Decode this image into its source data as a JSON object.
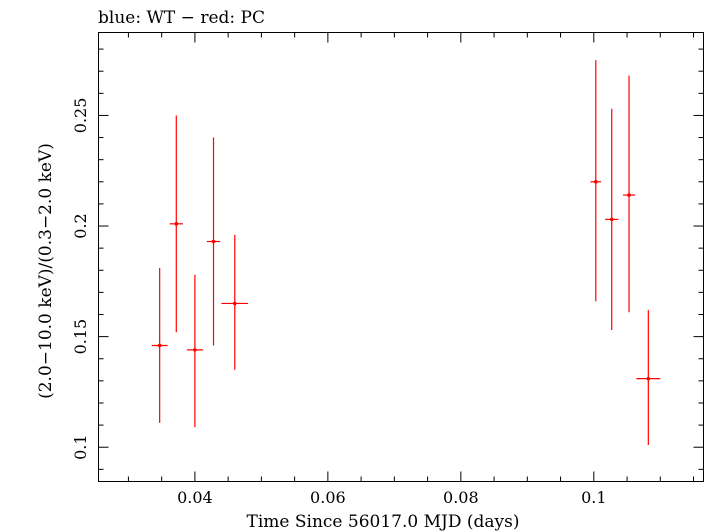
{
  "chart_data": {
    "type": "scatter",
    "title": "blue: WT − red: PC",
    "xlabel": "Time Since 56017.0 MJD (days)",
    "ylabel": "(2.0−10.0 keV)/(0.3−2.0 keV)",
    "xlim": [
      0.0255,
      0.1165
    ],
    "ylim": [
      0.0845,
      0.2875
    ],
    "x_major_ticks": [
      0.04,
      0.06,
      0.08,
      0.1
    ],
    "x_tick_labels": [
      "0.04",
      "0.06",
      "0.08",
      "0.1"
    ],
    "x_minor_step": 0.005,
    "y_major_ticks": [
      0.1,
      0.15,
      0.2,
      0.25
    ],
    "y_tick_labels": [
      "0.1",
      "0.15",
      "0.2",
      "0.25"
    ],
    "y_minor_step": 0.01,
    "grid": false,
    "legend": "none",
    "colors": {
      "PC": "#ff0000",
      "WT": "#0000ff"
    },
    "series": [
      {
        "name": "PC",
        "color": "#ff0000",
        "points": [
          {
            "x": 0.0347,
            "xerr": 0.0012,
            "y": 0.146,
            "ylow": 0.111,
            "yhigh": 0.181
          },
          {
            "x": 0.0372,
            "xerr": 0.001,
            "y": 0.201,
            "ylow": 0.152,
            "yhigh": 0.25
          },
          {
            "x": 0.04,
            "xerr": 0.0012,
            "y": 0.144,
            "ylow": 0.109,
            "yhigh": 0.178
          },
          {
            "x": 0.0428,
            "xerr": 0.001,
            "y": 0.193,
            "ylow": 0.146,
            "yhigh": 0.24
          },
          {
            "x": 0.046,
            "xerr": 0.002,
            "y": 0.165,
            "ylow": 0.135,
            "yhigh": 0.196
          },
          {
            "x": 0.1003,
            "xerr": 0.0008,
            "y": 0.22,
            "ylow": 0.166,
            "yhigh": 0.275
          },
          {
            "x": 0.1027,
            "xerr": 0.001,
            "y": 0.203,
            "ylow": 0.153,
            "yhigh": 0.253
          },
          {
            "x": 0.1053,
            "xerr": 0.0009,
            "y": 0.214,
            "ylow": 0.161,
            "yhigh": 0.268
          },
          {
            "x": 0.1082,
            "xerr": 0.0018,
            "y": 0.131,
            "ylow": 0.101,
            "yhigh": 0.162
          }
        ]
      }
    ]
  }
}
